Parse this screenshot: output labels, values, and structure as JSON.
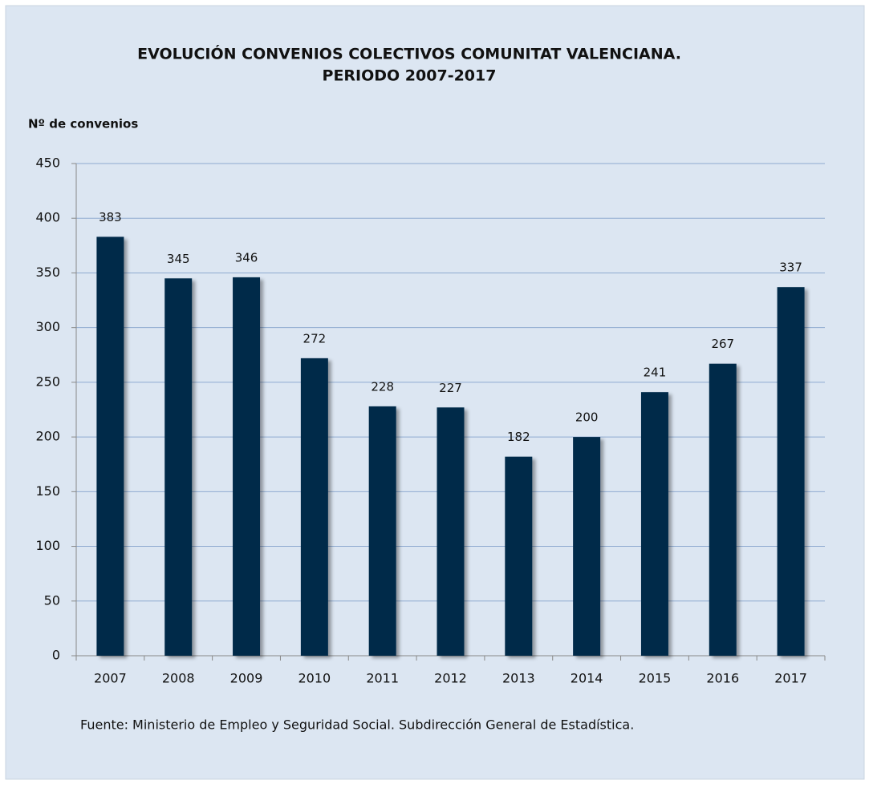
{
  "chart_data": {
    "type": "bar",
    "title": [
      "EVOLUCIÓN CONVENIOS COLECTIVOS COMUNITAT VALENCIANA.",
      "PERIODO 2007-2017"
    ],
    "y_label": "Nº de convenios",
    "categories": [
      "2007",
      "2008",
      "2009",
      "2010",
      "2011",
      "2012",
      "2013",
      "2014",
      "2015",
      "2016",
      "2017"
    ],
    "values": [
      383,
      345,
      346,
      272,
      228,
      227,
      182,
      200,
      241,
      267,
      337
    ],
    "color": "#002a4a",
    "ylim": [
      0,
      450
    ],
    "yticks": [
      0,
      50,
      100,
      150,
      200,
      250,
      300,
      350,
      400,
      450
    ],
    "grid": true,
    "source": "Fuente: Ministerio de Empleo y Seguridad Social. Subdirección General de Estadística."
  }
}
